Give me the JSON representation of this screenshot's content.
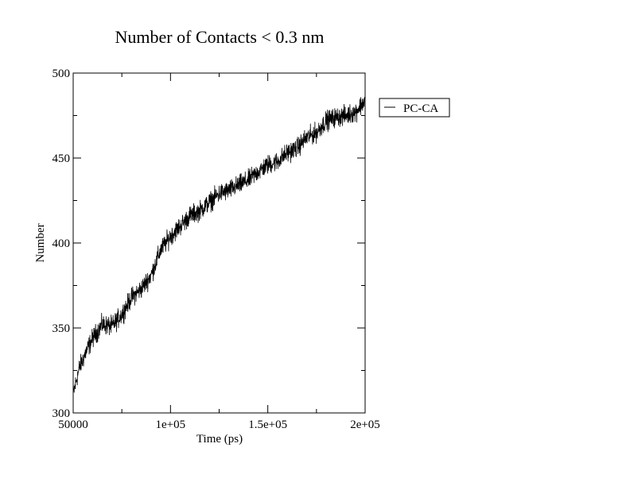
{
  "chart_data": {
    "type": "line",
    "title": "Number of Contacts < 0.3 nm",
    "xlabel": "Time (ps)",
    "ylabel": "Number",
    "xlim": [
      50000,
      200000
    ],
    "ylim": [
      300,
      500
    ],
    "xticks": [
      {
        "value": 50000,
        "label": "50000"
      },
      {
        "value": 100000,
        "label": "1e+05"
      },
      {
        "value": 150000,
        "label": "1.5e+05"
      },
      {
        "value": 200000,
        "label": "2e+05"
      }
    ],
    "yticks": [
      {
        "value": 300,
        "label": "300"
      },
      {
        "value": 350,
        "label": "350"
      },
      {
        "value": 400,
        "label": "400"
      },
      {
        "value": 450,
        "label": "450"
      },
      {
        "value": 500,
        "label": "500"
      }
    ],
    "grid": false,
    "legend_position": "right-outside-top",
    "series": [
      {
        "name": "PC-CA",
        "color": "#000000",
        "noise": 4,
        "x": [
          50000,
          53000,
          57000,
          60000,
          65000,
          70000,
          75000,
          80000,
          85000,
          90000,
          95000,
          100000,
          105000,
          110000,
          115000,
          120000,
          125000,
          130000,
          135000,
          140000,
          145000,
          150000,
          155000,
          160000,
          165000,
          170000,
          175000,
          180000,
          185000,
          190000,
          195000,
          200000
        ],
        "y": [
          311,
          326,
          337,
          344,
          352,
          351,
          358,
          368,
          373,
          381,
          396,
          404,
          410,
          416,
          419,
          424,
          429,
          431,
          434,
          437,
          442,
          446,
          448,
          453,
          456,
          462,
          465,
          472,
          474,
          475,
          477,
          484
        ]
      }
    ]
  }
}
